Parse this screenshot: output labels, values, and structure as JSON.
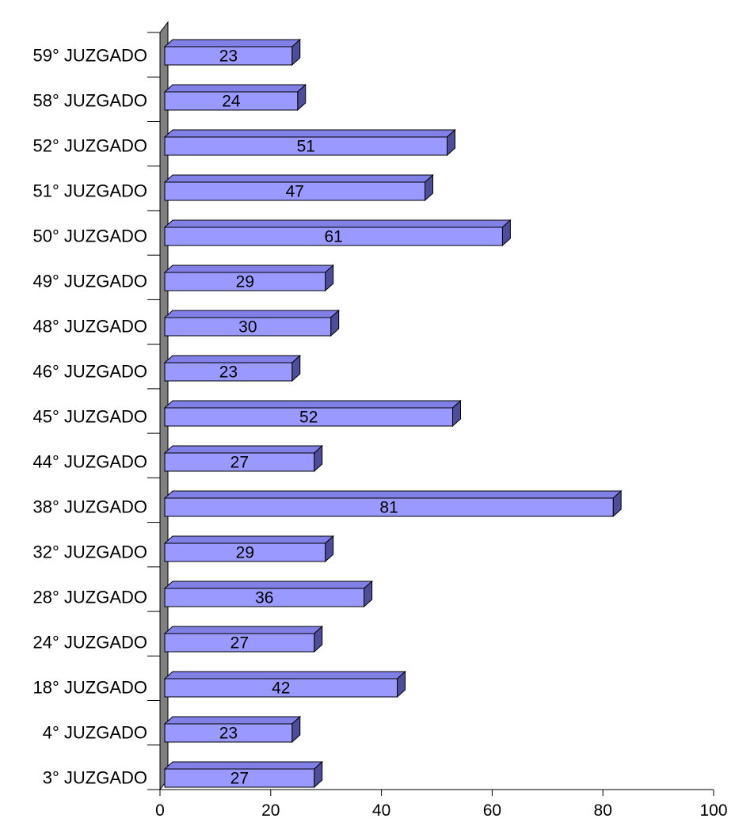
{
  "chart_data": {
    "type": "bar",
    "orientation": "horizontal",
    "style": "3d",
    "title": "",
    "xlabel": "",
    "ylabel": "",
    "categories": [
      "59° JUZGADO",
      "58° JUZGADO",
      "52° JUZGADO",
      "51° JUZGADO",
      "50° JUZGADO",
      "49° JUZGADO",
      "48° JUZGADO",
      "46° JUZGADO",
      "45° JUZGADO",
      "44° JUZGADO",
      "38° JUZGADO",
      "32° JUZGADO",
      "28° JUZGADO",
      "24° JUZGADO",
      "18° JUZGADO",
      "4° JUZGADO",
      "3° JUZGADO"
    ],
    "values": [
      23,
      24,
      51,
      47,
      61,
      29,
      30,
      23,
      52,
      27,
      81,
      29,
      36,
      27,
      42,
      23,
      27
    ],
    "xlim": [
      0,
      100
    ],
    "xticks": [
      0,
      20,
      40,
      60,
      80,
      100
    ],
    "grid": false,
    "legend": "none",
    "colors": {
      "bar_front": "#9999ff",
      "bar_top": "#8080e6",
      "bar_side": "#4d4d99",
      "wall": "#808080",
      "stroke": "#000000"
    }
  }
}
